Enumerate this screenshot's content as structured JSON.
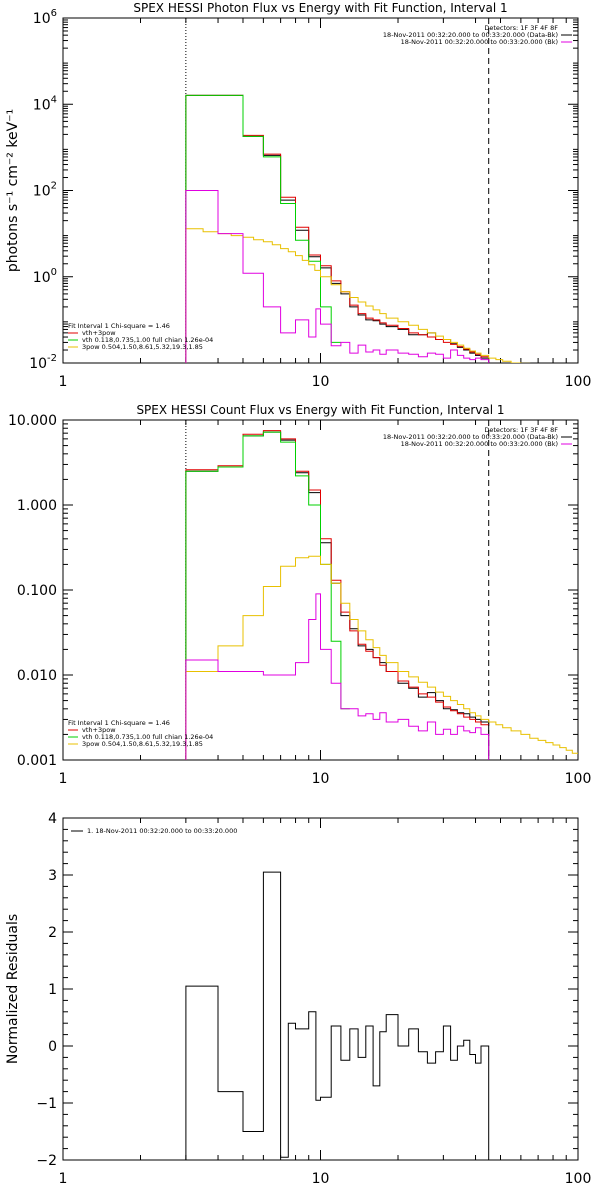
{
  "chart_data": [
    {
      "type": "line",
      "title": "SPEX HESSI Photon Flux vs Energy with Fit Function, Interval 1",
      "ylabel": "photons s⁻¹ cm⁻² keV⁻¹",
      "xlabel": "",
      "xscale": "log",
      "yscale": "log",
      "xlim": [
        1,
        100
      ],
      "ylim": [
        0.01,
        1000000
      ],
      "x_ticks": [
        {
          "value": 1,
          "label": "1"
        },
        {
          "value": 10,
          "label": "10"
        },
        {
          "value": 100,
          "label": "100"
        }
      ],
      "y_ticks": [
        {
          "value": 0.01,
          "base": "10",
          "exp": "-2"
        },
        {
          "value": 1,
          "base": "10",
          "exp": "0"
        },
        {
          "value": 100,
          "base": "10",
          "exp": "2"
        },
        {
          "value": 10000,
          "base": "10",
          "exp": "4"
        },
        {
          "value": 1000000,
          "base": "10",
          "exp": "6"
        }
      ],
      "vlines": [
        {
          "x": 3,
          "style": "dotted"
        },
        {
          "x": 45,
          "style": "dashed"
        }
      ],
      "legend_top": {
        "placement": "top-right",
        "header": "Detectors: 1F 3F 4F 8F",
        "entries": [
          {
            "text": "18-Nov-2011 00:32:20.000 to 00:33:20.000 (Data-Bk)",
            "color": "#000000"
          },
          {
            "text": "18-Nov-2011 00:32:20.000 to 00:33:20.000 (Bk)",
            "color": "#e000e0"
          }
        ]
      },
      "legend_fit": {
        "placement": "bottom-left",
        "header": "Fit Interval 1   Chi-square = 1.46",
        "entries": [
          {
            "text": "vth+3pow",
            "color": "#e00000"
          },
          {
            "text": "vth 0.118,0.735,1.00  full chian 1.26e-04",
            "color": "#00d000"
          },
          {
            "text": "3pow 0.504,1.50,8.61,5.32,19.3,1.85",
            "color": "#e8c000"
          }
        ]
      },
      "series": [
        {
          "role": "data-bk",
          "color": "#000000",
          "type": "step",
          "edges": [
            3,
            4,
            5,
            6,
            7,
            8,
            9,
            10,
            11,
            12,
            13,
            14,
            15,
            16,
            17,
            18,
            20,
            22,
            24,
            26,
            28,
            30,
            32,
            34,
            36,
            38,
            40,
            42,
            45
          ],
          "values": [
            16000,
            16000,
            1800,
            650,
            60,
            12,
            2.9,
            1.6,
            0.7,
            0.4,
            0.2,
            0.13,
            0.1,
            0.095,
            0.08,
            0.07,
            0.06,
            0.045,
            0.045,
            0.05,
            0.035,
            0.035,
            0.028,
            0.023,
            0.02,
            0.017,
            0.015,
            0.013
          ]
        },
        {
          "role": "vth+3pow",
          "color": "#e00000",
          "type": "step",
          "edges": [
            3,
            4,
            5,
            6,
            7,
            8,
            9,
            10,
            11,
            12,
            13,
            14,
            15,
            16,
            17,
            18,
            20,
            22,
            24,
            26,
            28,
            30,
            32,
            34,
            36,
            38,
            40,
            42,
            45
          ],
          "values": [
            16000,
            16000,
            1900,
            700,
            70,
            14,
            3.2,
            1.8,
            0.8,
            0.45,
            0.22,
            0.14,
            0.11,
            0.1,
            0.085,
            0.075,
            0.063,
            0.05,
            0.045,
            0.04,
            0.035,
            0.03,
            0.027,
            0.024,
            0.021,
            0.018,
            0.016,
            0.014
          ]
        },
        {
          "role": "vth",
          "color": "#00d000",
          "type": "step",
          "edges": [
            3,
            4,
            5,
            6,
            7,
            8,
            9,
            10,
            11,
            12
          ],
          "values": [
            16000,
            16000,
            1800,
            600,
            50,
            7,
            2.3,
            0.2,
            0.03
          ]
        },
        {
          "role": "3pow",
          "color": "#e8c000",
          "type": "step",
          "edges": [
            3,
            3.5,
            4,
            4.5,
            5,
            5.5,
            6,
            6.5,
            7,
            7.5,
            8,
            8.5,
            9,
            9.5,
            10,
            11,
            12,
            13,
            14,
            15,
            16,
            17,
            18,
            20,
            22,
            24,
            26,
            28,
            30,
            32,
            34,
            36,
            38,
            40,
            42,
            45,
            48,
            51,
            55,
            60,
            65,
            70,
            75
          ],
          "values": [
            13,
            11,
            10,
            9,
            8.2,
            7.2,
            6.5,
            5.5,
            4.5,
            3.8,
            3.1,
            2.4,
            1.9,
            1.4,
            1.0,
            0.65,
            0.45,
            0.33,
            0.26,
            0.21,
            0.17,
            0.14,
            0.11,
            0.09,
            0.075,
            0.06,
            0.05,
            0.042,
            0.035,
            0.03,
            0.026,
            0.022,
            0.019,
            0.017,
            0.015,
            0.013,
            0.012,
            0.011,
            0.01,
            0.0098,
            0.0095,
            0.0093
          ]
        },
        {
          "role": "bk",
          "color": "#e000e0",
          "type": "step",
          "edges": [
            3,
            4,
            5,
            6,
            7,
            8,
            9,
            9.6,
            10,
            11,
            12,
            13,
            14,
            15,
            16,
            17,
            18,
            20,
            22,
            24,
            26,
            28,
            30,
            32,
            34,
            36,
            38,
            40,
            42,
            45
          ],
          "values": [
            100,
            10,
            1.2,
            0.2,
            0.05,
            0.1,
            0.04,
            0.18,
            0.08,
            0.025,
            0.03,
            0.017,
            0.026,
            0.018,
            0.02,
            0.016,
            0.02,
            0.017,
            0.016,
            0.014,
            0.017,
            0.016,
            0.013,
            0.02,
            0.015,
            0.013,
            0.012,
            0.013,
            0.012
          ]
        }
      ]
    },
    {
      "type": "line",
      "title": "SPEX HESSI Count Flux vs Energy with Fit Function, Interval 1",
      "ylabel": "",
      "xlabel": "",
      "xscale": "log",
      "yscale": "log",
      "xlim": [
        1,
        100
      ],
      "ylim": [
        0.001,
        10
      ],
      "x_ticks": [
        {
          "value": 1,
          "label": "1"
        },
        {
          "value": 10,
          "label": "10"
        },
        {
          "value": 100,
          "label": "100"
        }
      ],
      "y_ticks": [
        {
          "value": 0.001,
          "label": "0.001"
        },
        {
          "value": 0.01,
          "label": "0.010"
        },
        {
          "value": 0.1,
          "label": "0.100"
        },
        {
          "value": 1,
          "label": "1.000"
        },
        {
          "value": 10,
          "label": "10.000"
        }
      ],
      "vlines": [
        {
          "x": 3,
          "style": "dotted"
        },
        {
          "x": 45,
          "style": "dashed"
        }
      ],
      "legend_top": {
        "placement": "top-right",
        "header": "Detectors: 1F 3F 4F 8F",
        "entries": [
          {
            "text": "18-Nov-2011 00:32:20.000 to 00:33:20.000 (Data-Bk)",
            "color": "#000000"
          },
          {
            "text": "18-Nov-2011 00:32:20.000 to 00:33:20.000 (Bk)",
            "color": "#e000e0"
          }
        ]
      },
      "legend_fit": {
        "placement": "bottom-left",
        "header": "Fit Interval 1   Chi-square = 1.46",
        "entries": [
          {
            "text": "vth+3pow",
            "color": "#e00000"
          },
          {
            "text": "vth 0.118,0.735,1.00  full chian 1.26e-04",
            "color": "#00d000"
          },
          {
            "text": "3pow 0.504,1.50,8.61,5.32,19.3,1.85",
            "color": "#e8c000"
          }
        ]
      },
      "series": [
        {
          "role": "data-bk",
          "color": "#000000",
          "type": "step",
          "edges": [
            3,
            4,
            5,
            6,
            7,
            8,
            9,
            10,
            11,
            12,
            13,
            14,
            15,
            16,
            17,
            18,
            20,
            22,
            24,
            26,
            28,
            30,
            32,
            34,
            36,
            38,
            40,
            42,
            45
          ],
          "values": [
            2.5,
            2.8,
            6.5,
            7.2,
            5.8,
            2.4,
            1.4,
            0.36,
            0.12,
            0.05,
            0.035,
            0.022,
            0.02,
            0.016,
            0.014,
            0.011,
            0.008,
            0.007,
            0.0055,
            0.0062,
            0.005,
            0.004,
            0.0039,
            0.0036,
            0.0035,
            0.0032,
            0.003,
            0.0028
          ]
        },
        {
          "role": "vth+3pow",
          "color": "#e00000",
          "type": "step",
          "edges": [
            3,
            4,
            5,
            6,
            7,
            8,
            9,
            10,
            11,
            12,
            13,
            14,
            15,
            16,
            17,
            18,
            20,
            22,
            24,
            26,
            28,
            30,
            32,
            34,
            36,
            38,
            40,
            42,
            45
          ],
          "values": [
            2.6,
            2.9,
            6.8,
            7.5,
            6.0,
            2.5,
            1.5,
            0.4,
            0.13,
            0.055,
            0.033,
            0.023,
            0.019,
            0.016,
            0.013,
            0.011,
            0.0085,
            0.0072,
            0.006,
            0.0055,
            0.0048,
            0.0042,
            0.0038,
            0.0035,
            0.0032,
            0.003,
            0.0028,
            0.0026
          ]
        },
        {
          "role": "vth",
          "color": "#00d000",
          "type": "step",
          "edges": [
            3,
            4,
            5,
            6,
            7,
            8,
            9,
            10,
            11,
            12,
            13
          ],
          "values": [
            2.5,
            2.8,
            6.5,
            7.2,
            5.5,
            2.2,
            1.0,
            0.2,
            0.025,
            0.004
          ]
        },
        {
          "role": "3pow",
          "color": "#e8c000",
          "type": "step",
          "edges": [
            3,
            4,
            5,
            6,
            7,
            8,
            9,
            10,
            11,
            12,
            13,
            14,
            15,
            16,
            17,
            18,
            20,
            22,
            24,
            26,
            28,
            30,
            32,
            34,
            36,
            38,
            40,
            42,
            45,
            48,
            51,
            55,
            60,
            65,
            70,
            75,
            80,
            85,
            90,
            95,
            100
          ],
          "values": [
            0.011,
            0.022,
            0.05,
            0.11,
            0.19,
            0.24,
            0.25,
            0.2,
            0.12,
            0.07,
            0.045,
            0.033,
            0.026,
            0.021,
            0.017,
            0.014,
            0.011,
            0.0095,
            0.0082,
            0.0072,
            0.0063,
            0.0056,
            0.005,
            0.0045,
            0.004,
            0.0036,
            0.0033,
            0.003,
            0.0028,
            0.0026,
            0.0024,
            0.0022,
            0.002,
            0.0018,
            0.0017,
            0.0016,
            0.0015,
            0.0014,
            0.0013,
            0.0012
          ]
        },
        {
          "role": "bk",
          "color": "#e000e0",
          "type": "step",
          "edges": [
            3,
            4,
            5,
            6,
            7,
            8,
            9,
            9.6,
            10,
            11,
            12,
            13,
            14,
            15,
            16,
            17,
            18,
            20,
            22,
            24,
            26,
            28,
            30,
            32,
            34,
            36,
            38,
            40,
            42,
            45
          ],
          "values": [
            0.015,
            0.011,
            0.011,
            0.01,
            0.01,
            0.014,
            0.045,
            0.09,
            0.02,
            0.008,
            0.004,
            0.004,
            0.0033,
            0.0035,
            0.003,
            0.0036,
            0.0028,
            0.003,
            0.0025,
            0.0022,
            0.0028,
            0.002,
            0.0023,
            0.002,
            0.0025,
            0.0022,
            0.0021,
            0.0024,
            0.002
          ]
        }
      ]
    },
    {
      "type": "line",
      "title": "",
      "ylabel": "Normalized Residuals",
      "xlabel": "",
      "xscale": "log",
      "yscale": "linear",
      "xlim": [
        1,
        100
      ],
      "ylim": [
        -2,
        4
      ],
      "x_ticks": [
        {
          "value": 1,
          "label": "1"
        },
        {
          "value": 10,
          "label": "10"
        },
        {
          "value": 100,
          "label": "100"
        }
      ],
      "y_ticks": [
        {
          "value": -2,
          "label": "−2"
        },
        {
          "value": -1,
          "label": "−1"
        },
        {
          "value": 0,
          "label": "0"
        },
        {
          "value": 1,
          "label": "1"
        },
        {
          "value": 2,
          "label": "2"
        },
        {
          "value": 3,
          "label": "3"
        },
        {
          "value": 4,
          "label": "4"
        }
      ],
      "legend_top": {
        "placement": "top-left",
        "entries": [
          {
            "text": "1. 18-Nov-2011 00:32:20.000 to 00:33:20.000",
            "color": "#000000"
          }
        ]
      },
      "series": [
        {
          "role": "residuals",
          "color": "#000000",
          "type": "step",
          "edges": [
            3,
            4,
            5,
            6,
            7,
            7.5,
            8,
            9,
            9.6,
            10,
            11,
            12,
            13,
            14,
            15,
            16,
            17,
            18,
            20,
            22,
            24,
            26,
            28,
            30,
            32,
            34,
            36,
            38,
            40,
            42,
            45
          ],
          "values": [
            1.05,
            -0.8,
            -1.5,
            3.05,
            -1.95,
            0.4,
            0.3,
            0.6,
            -0.95,
            -0.9,
            0.35,
            -0.25,
            0.3,
            -0.2,
            0.35,
            -0.7,
            0.25,
            0.55,
            0.0,
            0.3,
            -0.1,
            -0.3,
            -0.1,
            0.35,
            -0.25,
            0.0,
            0.1,
            -0.15,
            -0.3,
            0.0
          ]
        }
      ]
    }
  ]
}
